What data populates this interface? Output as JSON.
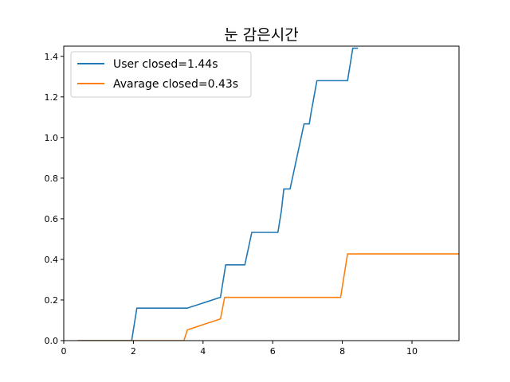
{
  "chart_data": {
    "type": "line",
    "title": "눈 감은시간",
    "xlabel": "",
    "ylabel": "",
    "xlim": [
      0,
      11.35
    ],
    "ylim": [
      0,
      1.45
    ],
    "xticks": [
      0,
      2,
      4,
      6,
      8,
      10
    ],
    "xtick_labels": [
      "0",
      "2",
      "4",
      "6",
      "8",
      "10"
    ],
    "yticks": [
      0.0,
      0.2,
      0.4,
      0.6,
      0.8,
      1.0,
      1.2,
      1.4
    ],
    "ytick_labels": [
      "0.0",
      "0.2",
      "0.4",
      "0.6",
      "0.8",
      "1.0",
      "1.2",
      "1.4"
    ],
    "grid": false,
    "legend_position": "top-left",
    "series": [
      {
        "name": "User closed=1.44s",
        "color": "#1f77b4",
        "x": [
          0.4,
          1.95,
          2.1,
          3.55,
          4.5,
          4.65,
          5.2,
          5.4,
          6.15,
          6.25,
          6.32,
          6.5,
          6.9,
          7.05,
          7.1,
          7.27,
          8.15,
          8.3,
          8.45
        ],
        "y": [
          0.0,
          0.0,
          0.16,
          0.16,
          0.213,
          0.373,
          0.373,
          0.533,
          0.533,
          0.64,
          0.747,
          0.747,
          1.067,
          1.067,
          1.12,
          1.28,
          1.28,
          1.44,
          1.44
        ]
      },
      {
        "name": "Avarage closed=0.43s",
        "color": "#ff7f0e",
        "x": [
          0.4,
          3.45,
          3.55,
          4.5,
          4.62,
          7.95,
          8.15,
          11.4
        ],
        "y": [
          0.0,
          0.0,
          0.053,
          0.107,
          0.213,
          0.213,
          0.427,
          0.427
        ]
      }
    ]
  }
}
